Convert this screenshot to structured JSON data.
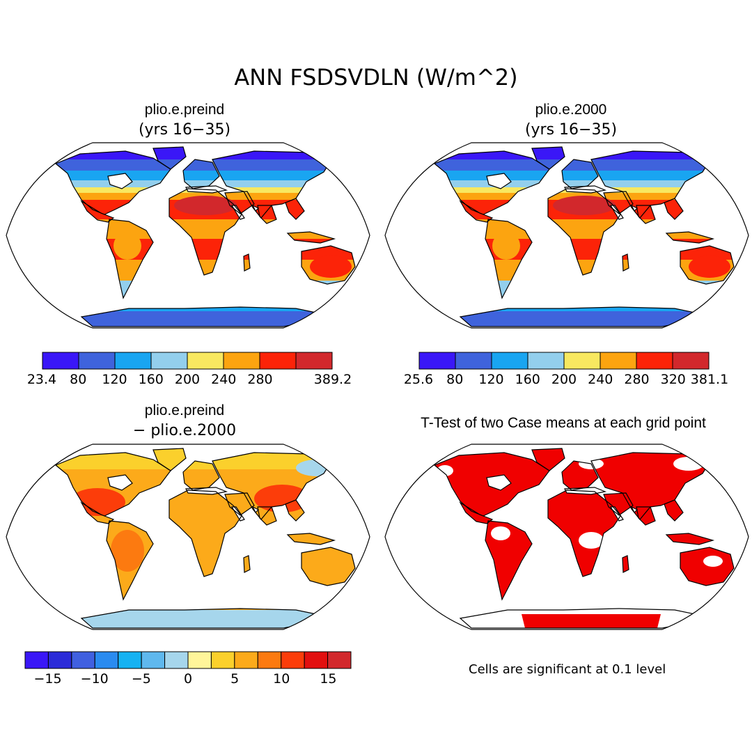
{
  "main_title": "ANN FSDSVDLN (W/m^2)",
  "panels": {
    "top_left": {
      "title": "plio.e.preind",
      "subtitle": "(yrs 16−35)"
    },
    "top_right": {
      "title": "plio.e.2000",
      "subtitle": "(yrs 16−35)"
    },
    "bottom_left": {
      "title": "plio.e.preind",
      "subtitle": "− plio.e.2000"
    },
    "bottom_right": {
      "title": "T-Test of two Case means at each grid point"
    }
  },
  "colorbars": {
    "top_left": {
      "colors": [
        "#3a17f7",
        "#3f63dc",
        "#19a5f1",
        "#93cfed",
        "#f8e860",
        "#fca410",
        "#fc2308",
        "#d2282c"
      ],
      "labels": [
        "23.4",
        "80",
        "120",
        "160",
        "200",
        "240",
        "280",
        "389.2"
      ]
    },
    "top_right": {
      "colors": [
        "#3a17f7",
        "#3f63dc",
        "#19a5f1",
        "#93cfed",
        "#f8e860",
        "#fca410",
        "#fc2308",
        "#d2282c"
      ],
      "labels": [
        "25.6",
        "80",
        "120",
        "160",
        "200",
        "240",
        "280",
        "320",
        "381.1"
      ]
    },
    "bottom_left": {
      "colors": [
        "#3a17f7",
        "#2b2bd8",
        "#4060e0",
        "#2a8bf0",
        "#16b2f2",
        "#5fb8ee",
        "#a6d6ec",
        "#fff59a",
        "#fbd02c",
        "#fcaa1a",
        "#fc7a10",
        "#fc3d0a",
        "#e20f0f",
        "#d2282c"
      ],
      "labels": [
        "−15",
        "−10",
        "−5",
        "0",
        "5",
        "10",
        "15"
      ]
    }
  },
  "note": "Cells are significant at 0.1 level",
  "palette": {
    "land_high": "#fc2308",
    "land_mid": "#fca410",
    "land_low": "#3f63dc",
    "signif": "#f00000"
  }
}
